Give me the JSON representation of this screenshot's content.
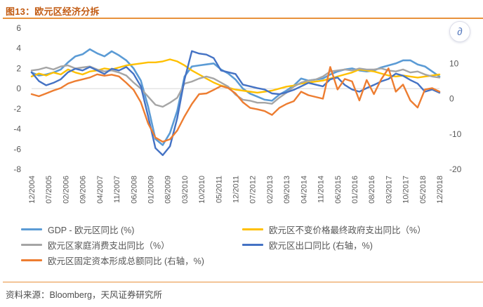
{
  "page": {
    "title": "图13：欧元区经济分拆",
    "source_label": "资料来源：Bloomberg，天风证券研究所",
    "title_color": "#C25A11",
    "rule_color": "#E8923C",
    "floating_icon": {
      "glyph": "∂",
      "color": "#5C7EC0"
    }
  },
  "chart_data": {
    "type": "line",
    "title": "欧元区经济分拆",
    "x_tick_labels": [
      "12/2004",
      "07/2005",
      "02/2006",
      "09/2006",
      "04/2007",
      "11/2007",
      "06/2008",
      "01/2009",
      "08/2009",
      "03/2010",
      "10/2010",
      "05/2011",
      "12/2011",
      "07/2012",
      "02/2013",
      "09/2013",
      "04/2014",
      "11/2014",
      "06/2015",
      "01/2016",
      "08/2016",
      "03/2017",
      "10/2017",
      "05/2018",
      "12/2018"
    ],
    "x_range_note": "quarterly data from 2004Q4 to 2018Q4, 57 points per series",
    "left_axis": {
      "max": 6,
      "min": -8,
      "ticks": [
        6,
        4,
        2,
        0,
        -2,
        -4,
        -6,
        -8
      ]
    },
    "right_axis": {
      "max": 20,
      "min": -20,
      "ticks": [
        10,
        0,
        -10,
        -20
      ]
    },
    "gridline_left_value": 0,
    "grid": "single horizontal gridline at left-axis 0",
    "legend_position": "bottom, two columns",
    "series": [
      {
        "name": "GDP - 欧元区同比 (%)",
        "axis": "left",
        "color": "#5B9BD5",
        "width": 2.6,
        "values": [
          1.6,
          1.3,
          1.4,
          1.6,
          1.9,
          2.6,
          3.2,
          3.4,
          3.9,
          3.5,
          3.2,
          3.7,
          3.3,
          2.8,
          2.0,
          0.8,
          -1.8,
          -5.0,
          -5.6,
          -4.4,
          -2.2,
          1.2,
          2.2,
          2.3,
          2.4,
          2.5,
          1.9,
          1.5,
          0.9,
          0.0,
          -0.5,
          -0.8,
          -1.1,
          -1.2,
          -0.6,
          -0.2,
          0.3,
          1.0,
          0.8,
          0.9,
          1.0,
          1.4,
          1.7,
          1.9,
          2.0,
          1.8,
          1.7,
          1.8,
          2.1,
          2.3,
          2.5,
          2.8,
          2.8,
          2.4,
          2.2,
          1.7,
          1.2
        ]
      },
      {
        "name": "欧元区不变价格最终政府支出同比（%）",
        "axis": "left",
        "color": "#FFC000",
        "width": 2.4,
        "values": [
          1.2,
          1.5,
          1.3,
          1.6,
          1.4,
          1.9,
          1.6,
          1.4,
          1.7,
          1.8,
          2.0,
          1.9,
          2.1,
          2.3,
          2.4,
          2.5,
          2.6,
          2.6,
          2.7,
          2.9,
          2.7,
          2.3,
          1.8,
          1.4,
          1.0,
          0.6,
          0.3,
          0.1,
          -0.1,
          -0.2,
          -0.3,
          -0.4,
          -0.3,
          -0.2,
          0.0,
          0.2,
          0.3,
          0.5,
          0.6,
          0.7,
          0.8,
          1.0,
          1.2,
          1.4,
          1.6,
          1.9,
          1.8,
          1.7,
          1.5,
          1.3,
          1.2,
          1.3,
          1.2,
          1.1,
          1.2,
          1.3,
          1.4
        ]
      },
      {
        "name": "欧元区家庭消费支出同比（%）",
        "axis": "left",
        "color": "#A5A5A5",
        "width": 2.4,
        "values": [
          1.8,
          1.9,
          2.1,
          1.9,
          2.2,
          2.3,
          2.0,
          2.1,
          2.2,
          1.9,
          1.7,
          1.8,
          1.6,
          1.3,
          0.6,
          0.0,
          -0.8,
          -1.6,
          -1.8,
          -1.4,
          -0.9,
          0.5,
          0.7,
          1.0,
          1.2,
          1.0,
          0.6,
          0.2,
          -0.6,
          -1.1,
          -1.2,
          -1.4,
          -1.4,
          -1.5,
          -0.9,
          -0.4,
          0.2,
          0.6,
          0.8,
          0.9,
          1.2,
          1.7,
          1.8,
          1.9,
          1.8,
          2.0,
          1.9,
          1.9,
          2.0,
          1.8,
          1.7,
          1.9,
          1.6,
          1.7,
          1.4,
          1.2,
          1.1
        ]
      },
      {
        "name": "欧元区出口同比 (右轴，%)",
        "axis": "right",
        "color": "#4472C4",
        "width": 2.4,
        "values": [
          7.5,
          5.0,
          3.8,
          4.5,
          5.5,
          7.5,
          8.5,
          8.0,
          9.0,
          8.0,
          7.0,
          8.5,
          8.0,
          9.0,
          7.0,
          3.5,
          -5.0,
          -14.0,
          -16.0,
          -13.5,
          -5.5,
          5.5,
          13.5,
          12.8,
          12.5,
          11.5,
          8.0,
          7.5,
          7.0,
          4.0,
          3.5,
          3.0,
          2.6,
          1.5,
          1.3,
          1.8,
          2.5,
          3.5,
          4.5,
          4.0,
          3.5,
          5.5,
          6.0,
          3.9,
          2.6,
          2.0,
          3.0,
          3.9,
          4.9,
          5.6,
          7.1,
          6.5,
          5.3,
          4.3,
          2.0,
          2.6,
          1.7
        ]
      },
      {
        "name": "欧元区固定资本形成总额同比 (右轴，%)",
        "axis": "right",
        "color": "#ED7D31",
        "width": 2.4,
        "values": [
          1.3,
          0.7,
          1.5,
          2.3,
          3.0,
          4.3,
          5.0,
          5.5,
          6.0,
          6.9,
          6.5,
          6.8,
          6.3,
          4.5,
          2.5,
          -1.0,
          -7.0,
          -11.0,
          -12.2,
          -11.5,
          -9.0,
          -5.0,
          -1.5,
          1.3,
          1.5,
          2.5,
          3.6,
          3.0,
          1.5,
          -1.0,
          -2.6,
          -3.0,
          -3.5,
          -4.6,
          -2.6,
          -1.5,
          -0.7,
          2.0,
          1.0,
          0.5,
          0.0,
          9.0,
          2.6,
          5.6,
          4.9,
          -0.5,
          5.3,
          1.3,
          5.5,
          8.6,
          2.0,
          4.0,
          -0.5,
          -2.5,
          2.6,
          3.0,
          2.0
        ]
      }
    ]
  }
}
